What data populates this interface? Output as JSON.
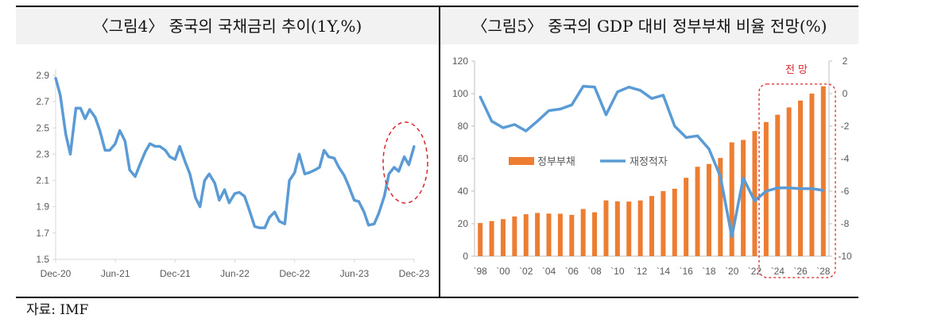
{
  "source": "자료: IMF",
  "colors": {
    "line": "#5b9bd5",
    "bar": "#ed7d31",
    "highlight": "#d9262c",
    "header_bg": "#f2f2f2"
  },
  "chart_data": [
    {
      "type": "line",
      "title": "〈그림4〉 중국의 국채금리 추이(1Y,%)",
      "ylim": [
        1.5,
        2.9
      ],
      "yticks": [
        "2.9",
        "2.7",
        "2.5",
        "2.3",
        "2.1",
        "1.9",
        "1.7",
        "1.5"
      ],
      "xticks": [
        "Dec-20",
        "Jun-21",
        "Dec-21",
        "Jun-22",
        "Dec-22",
        "Jun-23",
        "Dec-23"
      ],
      "grid": false,
      "annotation": "dashed red ellipse around recent rise (late 2023)",
      "x": [
        "2020-12-01",
        "2020-12-15",
        "2021-01-01",
        "2021-01-15",
        "2021-02-01",
        "2021-02-15",
        "2021-03-01",
        "2021-03-15",
        "2021-04-01",
        "2021-04-15",
        "2021-05-01",
        "2021-05-15",
        "2021-06-01",
        "2021-06-15",
        "2021-07-01",
        "2021-07-15",
        "2021-08-01",
        "2021-08-15",
        "2021-09-01",
        "2021-09-15",
        "2021-10-01",
        "2021-10-15",
        "2021-11-01",
        "2021-11-15",
        "2021-12-01",
        "2021-12-15",
        "2022-01-01",
        "2022-01-15",
        "2022-02-01",
        "2022-02-15",
        "2022-03-01",
        "2022-03-15",
        "2022-04-01",
        "2022-04-15",
        "2022-05-01",
        "2022-05-15",
        "2022-06-01",
        "2022-06-15",
        "2022-07-01",
        "2022-07-15",
        "2022-08-01",
        "2022-08-15",
        "2022-09-01",
        "2022-09-15",
        "2022-10-01",
        "2022-10-15",
        "2022-11-01",
        "2022-11-15",
        "2022-12-01",
        "2022-12-15",
        "2023-01-01",
        "2023-01-15",
        "2023-02-01",
        "2023-02-15",
        "2023-03-01",
        "2023-03-15",
        "2023-04-01",
        "2023-04-15",
        "2023-05-01",
        "2023-05-15",
        "2023-06-01",
        "2023-06-15",
        "2023-07-01",
        "2023-07-15",
        "2023-08-01",
        "2023-08-15",
        "2023-09-01",
        "2023-09-15",
        "2023-10-01",
        "2023-10-15",
        "2023-11-01",
        "2023-11-15",
        "2023-12-01"
      ],
      "values": [
        2.88,
        2.75,
        2.45,
        2.3,
        2.65,
        2.65,
        2.57,
        2.64,
        2.58,
        2.48,
        2.33,
        2.33,
        2.38,
        2.48,
        2.4,
        2.18,
        2.13,
        2.22,
        2.32,
        2.38,
        2.36,
        2.36,
        2.33,
        2.28,
        2.26,
        2.36,
        2.24,
        2.15,
        1.97,
        1.9,
        2.1,
        2.15,
        2.08,
        1.95,
        2.03,
        1.93,
        2.0,
        2.01,
        1.98,
        1.88,
        1.75,
        1.74,
        1.74,
        1.82,
        1.86,
        1.79,
        1.77,
        2.1,
        2.16,
        2.3,
        2.15,
        2.16,
        2.18,
        2.2,
        2.33,
        2.28,
        2.27,
        2.2,
        2.14,
        2.06,
        1.95,
        1.94,
        1.86,
        1.76,
        1.77,
        1.85,
        1.98,
        2.15,
        2.2,
        2.17,
        2.28,
        2.22,
        2.36
      ]
    },
    {
      "type": "bar+line",
      "title": "〈그림5〉 중국의 GDP 대비 정부부채 비율 전망(%)",
      "forecast_label": "전 망",
      "xticks": [
        "`98",
        "`00",
        "`02",
        "`04",
        "`06",
        "`08",
        "`10",
        "`12",
        "`14",
        "`16",
        "`18",
        "`20",
        "`22",
        "`24",
        "`26",
        "`28"
      ],
      "categories": [
        1998,
        1999,
        2000,
        2001,
        2002,
        2003,
        2004,
        2005,
        2006,
        2007,
        2008,
        2009,
        2010,
        2011,
        2012,
        2013,
        2014,
        2015,
        2016,
        2017,
        2018,
        2019,
        2020,
        2021,
        2022,
        2023,
        2024,
        2025,
        2026,
        2027,
        2028
      ],
      "y_left": {
        "lim": [
          0,
          120
        ],
        "ticks": [
          "120",
          "100",
          "80",
          "60",
          "40",
          "20",
          "0"
        ]
      },
      "y_right": {
        "lim": [
          -10,
          2
        ],
        "ticks": [
          "2",
          "0",
          "-2",
          "-4",
          "-6",
          "-8",
          "-10"
        ]
      },
      "legend": "center-left",
      "series": [
        {
          "name": "정부부채",
          "type": "bar",
          "axis": "left",
          "values": [
            20.4,
            21.6,
            22.8,
            24.4,
            25.8,
            26.6,
            26.2,
            26.1,
            25.4,
            29.0,
            27.0,
            34.3,
            33.7,
            33.6,
            34.3,
            37.0,
            40.0,
            41.5,
            48.2,
            55.0,
            56.7,
            60.4,
            70.0,
            71.5,
            77.0,
            82.5,
            87.0,
            91.5,
            95.7,
            100.0,
            104.5
          ]
        },
        {
          "name": "재정적자",
          "type": "line",
          "axis": "right",
          "values": [
            -0.2,
            -1.7,
            -2.1,
            -1.9,
            -2.3,
            -1.7,
            -1.05,
            -0.95,
            -0.7,
            0.45,
            0.4,
            -1.3,
            0.1,
            0.4,
            0.2,
            -0.3,
            -0.1,
            -2.0,
            -2.7,
            -2.6,
            -3.4,
            -5.1,
            -8.8,
            -5.2,
            -6.6,
            -6.0,
            -5.8,
            -5.8,
            -5.85,
            -5.85,
            -5.95
          ]
        }
      ]
    }
  ]
}
